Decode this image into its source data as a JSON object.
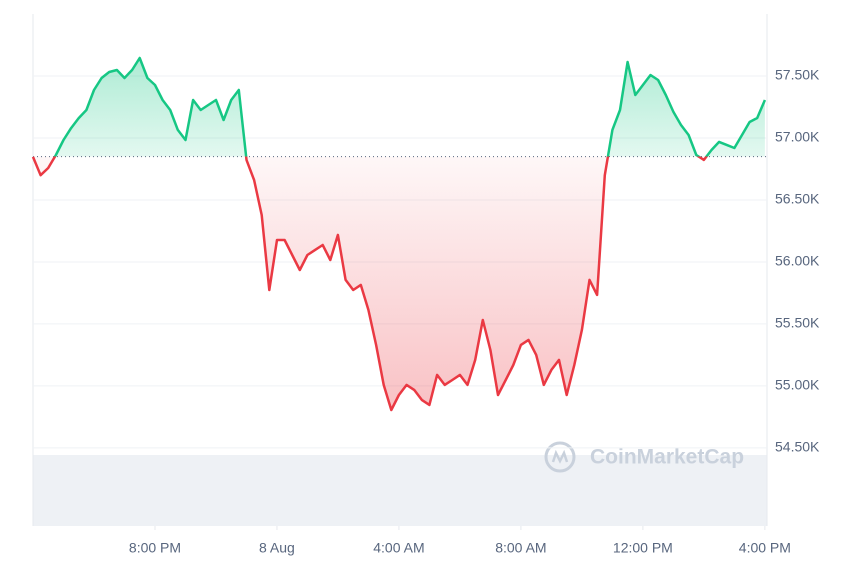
{
  "chart_data": {
    "type": "baseline-line",
    "watermark": "CoinMarketCap",
    "baseline": 56850,
    "up_color": "#16c784",
    "down_color": "#ea3943",
    "grid": true,
    "xlim": [
      0,
      24.07
    ],
    "xticks": [
      {
        "value": 4,
        "label": "8:00 PM"
      },
      {
        "value": 8,
        "label": "8 Aug"
      },
      {
        "value": 12,
        "label": "4:00 AM"
      },
      {
        "value": 16,
        "label": "8:00 AM"
      },
      {
        "value": 20,
        "label": "12:00 PM"
      },
      {
        "value": 24,
        "label": "4:00 PM"
      }
    ],
    "ylim": [
      53870,
      58000
    ],
    "yticks": [
      {
        "value": 54500,
        "label": "54.50K"
      },
      {
        "value": 55000,
        "label": "55.00K"
      },
      {
        "value": 55500,
        "label": "55.50K"
      },
      {
        "value": 56000,
        "label": "56.00K"
      },
      {
        "value": 56500,
        "label": "56.50K"
      },
      {
        "value": 57000,
        "label": "57.00K"
      },
      {
        "value": 57500,
        "label": "57.50K"
      }
    ],
    "x": [
      0,
      0.25,
      0.5,
      0.75,
      1,
      1.25,
      1.5,
      1.75,
      2,
      2.25,
      2.5,
      2.75,
      3,
      3.25,
      3.5,
      3.75,
      4,
      4.25,
      4.5,
      4.75,
      5,
      5.25,
      5.5,
      5.75,
      6,
      6.25,
      6.5,
      6.75,
      7,
      7.25,
      7.5,
      7.75,
      8,
      8.25,
      8.5,
      8.75,
      9,
      9.25,
      9.5,
      9.75,
      10,
      10.25,
      10.5,
      10.75,
      11,
      11.25,
      11.5,
      11.75,
      12,
      12.25,
      12.5,
      12.75,
      13,
      13.25,
      13.5,
      13.75,
      14,
      14.25,
      14.5,
      14.75,
      15,
      15.25,
      15.5,
      15.75,
      16,
      16.25,
      16.5,
      16.75,
      17,
      17.25,
      17.5,
      17.75,
      18,
      18.25,
      18.5,
      18.75,
      19,
      19.25,
      19.5,
      19.75,
      20,
      20.25,
      20.5,
      20.75,
      21,
      21.25,
      21.5,
      21.75,
      22,
      22.25,
      22.5,
      22.75,
      23,
      23.25,
      23.5,
      23.75,
      24
    ],
    "values": [
      56847,
      56700,
      56758,
      56863,
      56984,
      57080,
      57160,
      57226,
      57387,
      57484,
      57532,
      57548,
      57484,
      57548,
      57645,
      57484,
      57427,
      57306,
      57226,
      57065,
      56984,
      57306,
      57226,
      57266,
      57306,
      57145,
      57306,
      57387,
      56823,
      56661,
      56379,
      55774,
      56177,
      56177,
      56056,
      55935,
      56056,
      56097,
      56137,
      56016,
      56218,
      55855,
      55774,
      55815,
      55613,
      55331,
      55008,
      54806,
      54927,
      55008,
      54968,
      54887,
      54847,
      55089,
      55008,
      55048,
      55089,
      55008,
      55210,
      55532,
      55290,
      54927,
      55048,
      55169,
      55331,
      55371,
      55250,
      55008,
      55129,
      55210,
      54927,
      55169,
      55452,
      55855,
      55734,
      56700,
      57065,
      57226,
      57613,
      57347,
      57427,
      57508,
      57468,
      57347,
      57210,
      57105,
      57024,
      56863,
      56823,
      56903,
      56968,
      56944,
      56919,
      57024,
      57129,
      57161,
      57306
    ]
  }
}
